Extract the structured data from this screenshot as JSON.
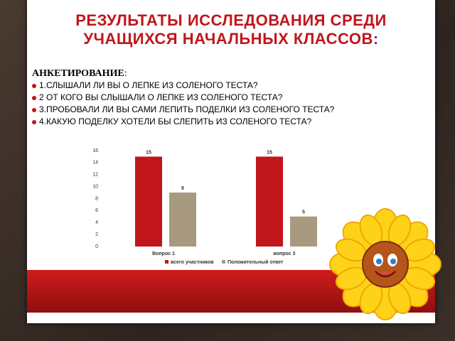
{
  "slide": {
    "title": "РЕЗУЛЬТАТЫ ИССЛЕДОВАНИЯ СРЕДИ УЧАЩИХСЯ НАЧАЛЬНЫХ КЛАССОВ",
    "title_mark": ":",
    "heading": "АНКЕТИРОВАНИЕ",
    "heading_mark": ":",
    "items": [
      "1.СЛЫШАЛИ ЛИ ВЫ О ЛЕПКЕ ИЗ СОЛЕНОГО ТЕСТА?",
      "2 ОТ КОГО ВЫ СЛЫШАЛИ О ЛЕПКЕ ИЗ СОЛЕНОГО ТЕСТА?",
      "3.ПРОБОВАЛИ ЛИ ВЫ САМИ ЛЕПИТЬ ПОДЕЛКИ ИЗ СОЛЕНОГО ТЕСТА?",
      "4.КАКУЮ ПОДЕЛКУ ХОТЕЛИ БЫ СЛЕПИТЬ ИЗ СОЛЕНОГО ТЕСТА?"
    ]
  },
  "chart_data": {
    "type": "bar",
    "categories": [
      "Вопрос 1",
      "вопрос 3"
    ],
    "series": [
      {
        "name": "всего участников",
        "color": "#c0161b",
        "values": [
          15,
          15
        ]
      },
      {
        "name": "Положительный ответ",
        "color": "#a89a7e",
        "values": [
          9,
          5
        ]
      }
    ],
    "ylim": [
      0,
      16
    ],
    "yticks": [
      0,
      2,
      4,
      6,
      8,
      10,
      12,
      14,
      16
    ],
    "grid": false,
    "legend": "bottom"
  }
}
